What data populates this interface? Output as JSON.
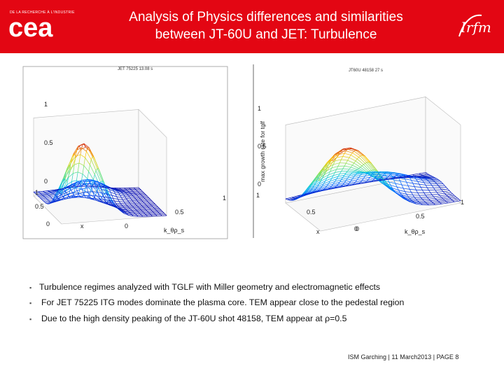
{
  "header": {
    "title_line1": "Analysis of Physics differences and similarities",
    "title_line2": "between JT-60U and JET: Turbulence",
    "cea_logo_text": "cea",
    "cea_tagline": "DE LA RECHERCHE À L'INDUSTRIE",
    "irfm_logo_text": "Irfm",
    "colors": {
      "brand_red": "#e30613"
    }
  },
  "chart_data": [
    {
      "type": "surface3d",
      "shot_label": "JET 75225 13.08 s",
      "zlabel": "",
      "z_ticks": [
        "1",
        "0.5",
        "0"
      ],
      "x_ticks": [
        "1",
        "0.5",
        "0"
      ],
      "y_ticks": [
        "0",
        "0.5",
        "1"
      ],
      "xlabel": "x",
      "ylabel": "k_θρ_s",
      "zlim": [
        0,
        1
      ]
    },
    {
      "type": "surface3d",
      "shot_label": "JT60U 48158 27 s",
      "zlabel": "max growth rate for tglf",
      "z_ticks": [
        "1",
        "0.5",
        "0"
      ],
      "x_ticks": [
        "1",
        "0.5",
        "0"
      ],
      "y_ticks": [
        "0",
        "0.5",
        "1"
      ],
      "xlabel": "x",
      "ylabel": "k_θρ_s",
      "zlim": [
        0,
        1
      ]
    }
  ],
  "bullets": [
    "Turbulence regimes analyzed with TGLF with Miller geometry and electromagnetic  effects",
    "For JET 75225 ITG modes dominate the plasma core. TEM appear close to the pedestal region",
    "Due to the high density peaking of the JT-60U shot 48158, TEM appear at ρ=0.5"
  ],
  "footer": {
    "text": "ISM Garching | 11 March2013 |",
    "page": "PAGE 8"
  }
}
